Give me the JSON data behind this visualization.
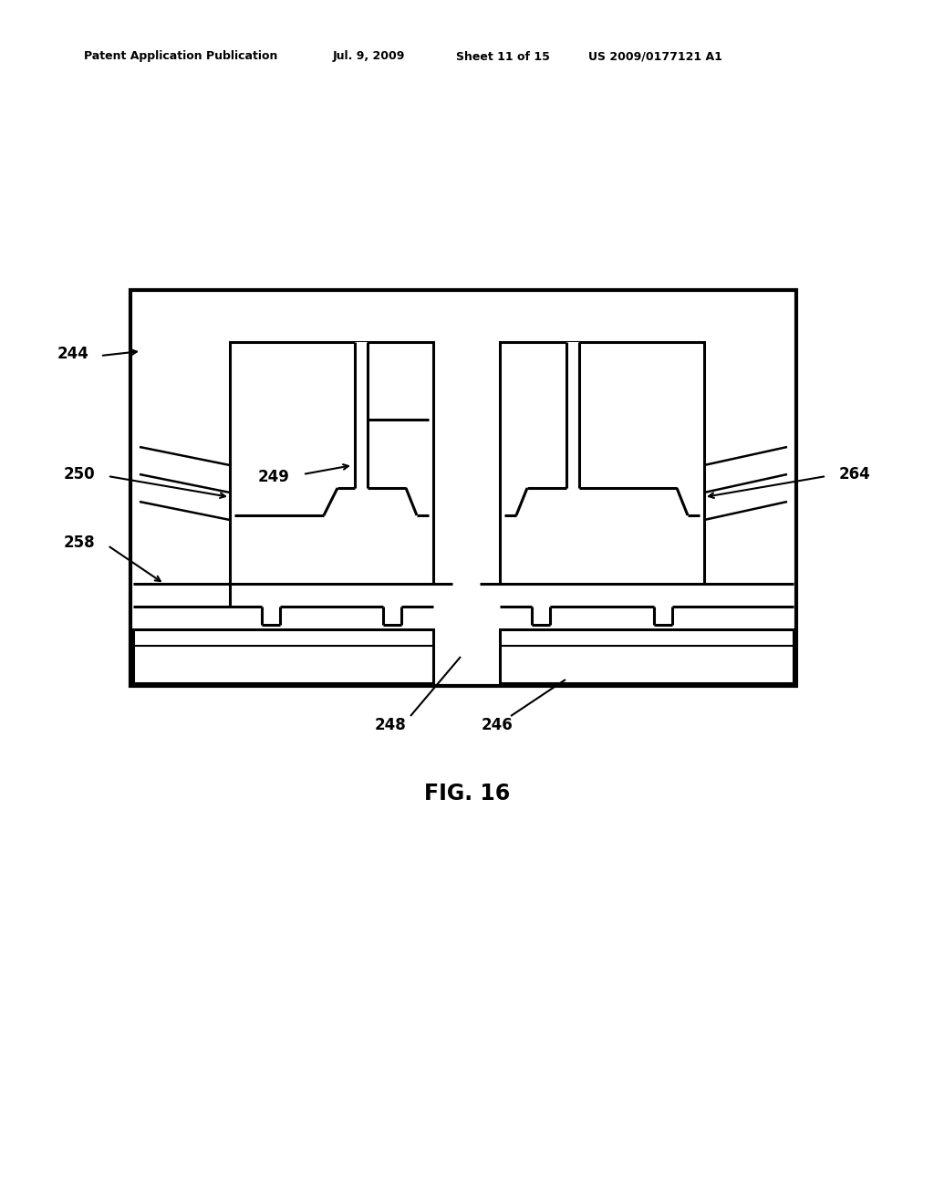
{
  "bg_color": "#ffffff",
  "header_text": "Patent Application Publication",
  "header_date": "Jul. 9, 2009",
  "header_sheet": "Sheet 11 of 15",
  "header_patent": "US 2009/0177121 A1",
  "fig_label": "FIG. 16"
}
